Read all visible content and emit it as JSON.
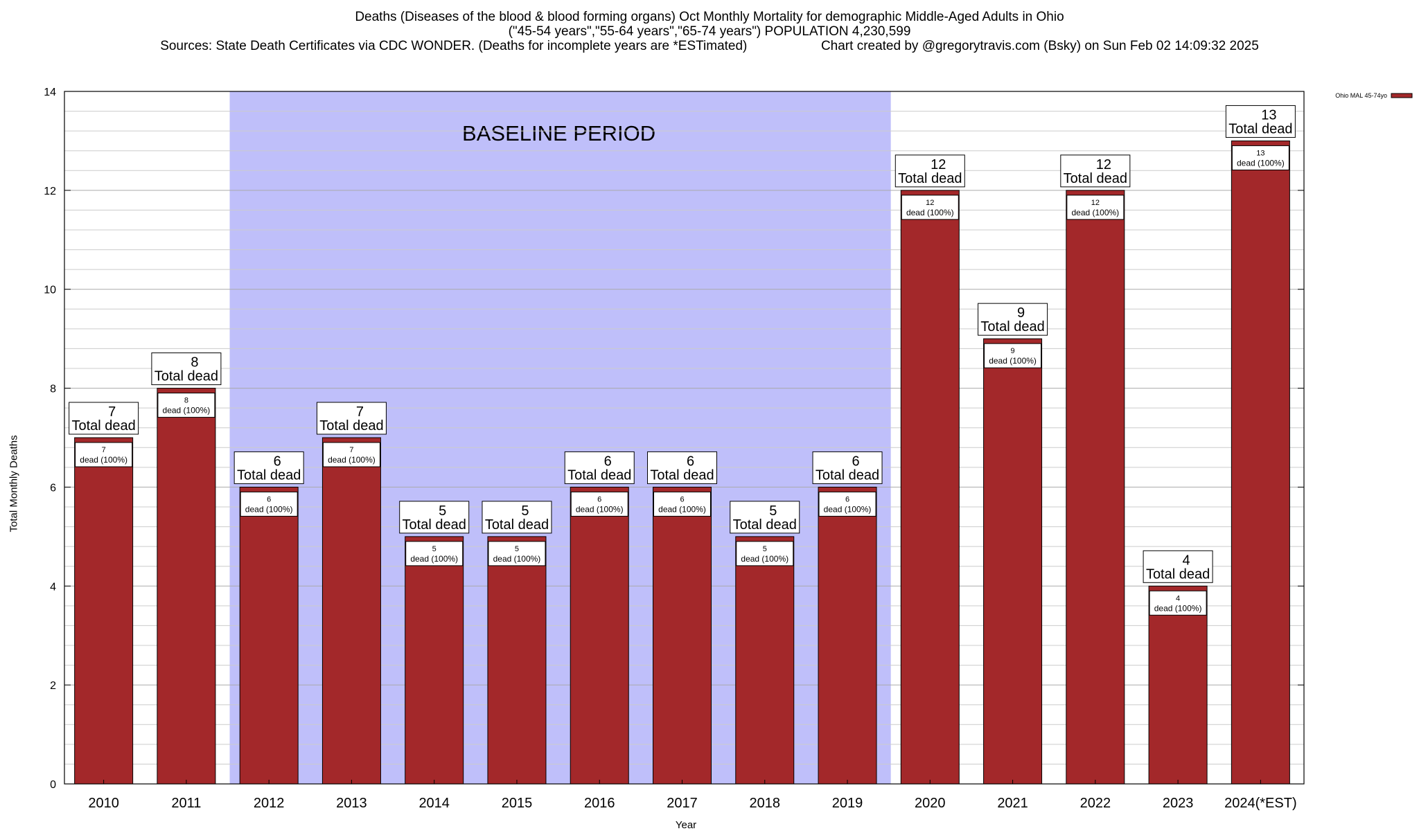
{
  "chart_data": {
    "type": "bar",
    "title": "Deaths (Diseases of the blood & blood forming organs) Oct Monthly Mortality for demographic Middle-Aged Adults in Ohio",
    "subtitle": "(\"45-54 years\",\"55-64 years\",\"65-74 years\") POPULATION 4,230,599",
    "sources": "Sources: State Death Certificates via CDC WONDER. (Deaths for incomplete years are *ESTimated)",
    "credit": "Chart created by @gregorytravis.com (Bsky) on Sun Feb 02 14:09:32 2025",
    "xlabel": "Year",
    "ylabel": "Total Monthly Deaths",
    "ylim": [
      0,
      14
    ],
    "yticks": [
      0,
      2,
      4,
      6,
      8,
      10,
      12,
      14
    ],
    "categories": [
      "2010",
      "2011",
      "2012",
      "2013",
      "2014",
      "2015",
      "2016",
      "2017",
      "2018",
      "2019",
      "2020",
      "2021",
      "2022",
      "2023",
      "2024(*EST)"
    ],
    "series": [
      {
        "name": "Ohio MAL 45-74yo",
        "color": "#a3282a",
        "values": [
          7,
          8,
          6,
          7,
          5,
          5,
          6,
          6,
          5,
          6,
          12,
          9,
          12,
          4,
          13
        ]
      }
    ],
    "total_label": "Total dead",
    "inner_label": "dead (100%)",
    "baseline": {
      "label": "BASELINE PERIOD",
      "start": "2012",
      "end": "2019",
      "color": "#bfbffa"
    },
    "legend": {
      "position": "top-right",
      "label": "Ohio MAL 45-74yo"
    },
    "grid": true
  }
}
